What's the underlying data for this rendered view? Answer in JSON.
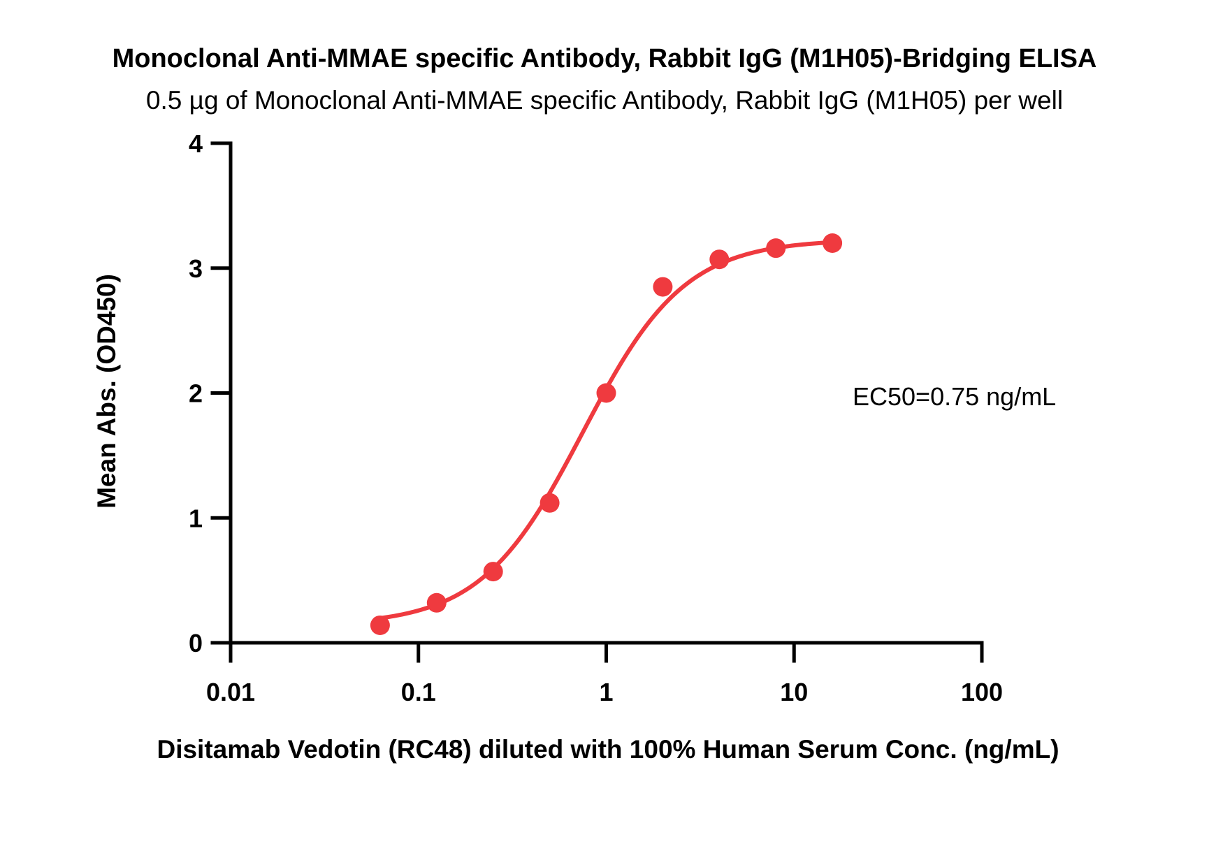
{
  "chart_data": {
    "type": "scatter",
    "title": "Monoclonal Anti-MMAE specific Antibody, Rabbit IgG (M1H05)-Bridging ELISA",
    "subtitle": "0.5 µg of Monoclonal Anti-MMAE specific Antibody, Rabbit IgG (M1H05) per well",
    "xlabel": "Disitamab Vedotin (RC48) diluted with 100% Human Serum Conc. (ng/mL)",
    "ylabel": "Mean Abs. (OD450)",
    "x_scale": "log",
    "xlim": [
      0.01,
      100
    ],
    "ylim": [
      0,
      4
    ],
    "x_ticks": [
      "0.01",
      "0.1",
      "1",
      "10",
      "100"
    ],
    "y_ticks": [
      "0",
      "1",
      "2",
      "3",
      "4"
    ],
    "grid": false,
    "annotation": "EC50=0.75 ng/mL",
    "color": "#ef3a3f",
    "series": [
      {
        "x": [
          0.0625,
          0.125,
          0.25,
          0.5,
          1,
          2,
          4,
          8,
          16
        ],
        "y": [
          0.14,
          0.32,
          0.57,
          1.12,
          2.0,
          2.85,
          3.07,
          3.16,
          3.2
        ]
      }
    ],
    "fit": {
      "type": "4PL",
      "bottom": 0.14,
      "top": 3.23,
      "ec50": 0.75,
      "hill": 1.6
    }
  }
}
